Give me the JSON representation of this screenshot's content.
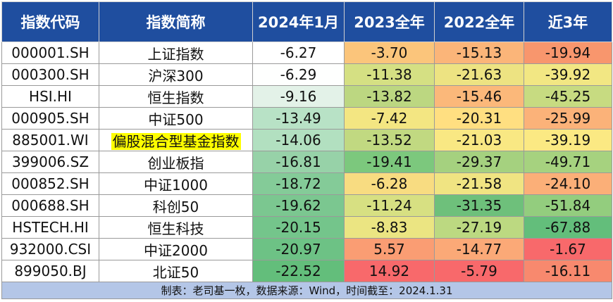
{
  "headers": [
    "指数代码",
    "指数简称",
    "2024年1月",
    "2023全年",
    "2022全年",
    "近3年"
  ],
  "rows": [
    {
      "code": "000001.SH",
      "name": "上证指数",
      "v": [
        "-6.27",
        "-3.70",
        "-15.13",
        "-19.94"
      ],
      "c": [
        "#ffffff",
        "#fbc57b",
        "#fbb579",
        "#f8966d"
      ]
    },
    {
      "code": "000300.SH",
      "name": "沪深300",
      "v": [
        "-6.29",
        "-11.38",
        "-21.63",
        "-39.92"
      ],
      "c": [
        "#fefffe",
        "#d5e083",
        "#ede382",
        "#f2e783"
      ]
    },
    {
      "code": "HSI.HI",
      "name": "恒生指数",
      "v": [
        "-9.16",
        "-13.82",
        "-15.46",
        "-45.25"
      ],
      "c": [
        "#e3f2e8",
        "#bcd781",
        "#fbb87a",
        "#c7db81"
      ]
    },
    {
      "code": "000905.SH",
      "name": "中证500",
      "v": [
        "-13.49",
        "-7.42",
        "-20.31",
        "-25.99"
      ],
      "c": [
        "#b8e2c6",
        "#f3e682",
        "#ffdf81",
        "#fbb279"
      ]
    },
    {
      "code": "885001.WI",
      "name": "偏股混合型基金指数",
      "v": [
        "-14.06",
        "-13.52",
        "-21.03",
        "-39.19"
      ],
      "c": [
        "#b2e0c0",
        "#c1d981",
        "#f9e883",
        "#fbe983"
      ],
      "highlight": true
    },
    {
      "code": "399006.SZ",
      "name": "创业板指",
      "v": [
        "-16.81",
        "-19.41",
        "-29.37",
        "-49.71"
      ],
      "c": [
        "#97d2a8",
        "#7cc87d",
        "#a5d17f",
        "#a6d27f"
      ]
    },
    {
      "code": "000852.SH",
      "name": "中证1000",
      "v": [
        "-18.72",
        "-6.28",
        "-21.58",
        "-24.10"
      ],
      "c": [
        "#84cb98",
        "#f8dc81",
        "#f0e482",
        "#fbaf78"
      ]
    },
    {
      "code": "000688.SH",
      "name": "科创50",
      "v": [
        "-19.62",
        "-11.24",
        "-31.35",
        "-51.84"
      ],
      "c": [
        "#7bc790",
        "#d7e082",
        "#6ec07b",
        "#93cd7e"
      ]
    },
    {
      "code": "HSTECH.HI",
      "name": "恒生科技",
      "v": [
        "-20.15",
        "-8.83",
        "-27.19",
        "-67.88"
      ],
      "c": [
        "#74c58b",
        "#ebe582",
        "#bcd981",
        "#63be7b"
      ]
    },
    {
      "code": "932000.CSI",
      "name": "中证2000",
      "v": [
        "-20.97",
        "5.57",
        "-14.77",
        "-1.67"
      ],
      "c": [
        "#6dc285",
        "#fa9d73",
        "#fba977",
        "#f8696b"
      ]
    },
    {
      "code": "899050.BJ",
      "name": "北证50",
      "v": [
        "-22.52",
        "14.92",
        "-5.79",
        "-16.11"
      ],
      "c": [
        "#63be7b",
        "#f8696b",
        "#f8696b",
        "#f8896e"
      ]
    }
  ],
  "footer": "制表：老司基一枚，数据来源：Wind，时间截至：2024.1.31"
}
